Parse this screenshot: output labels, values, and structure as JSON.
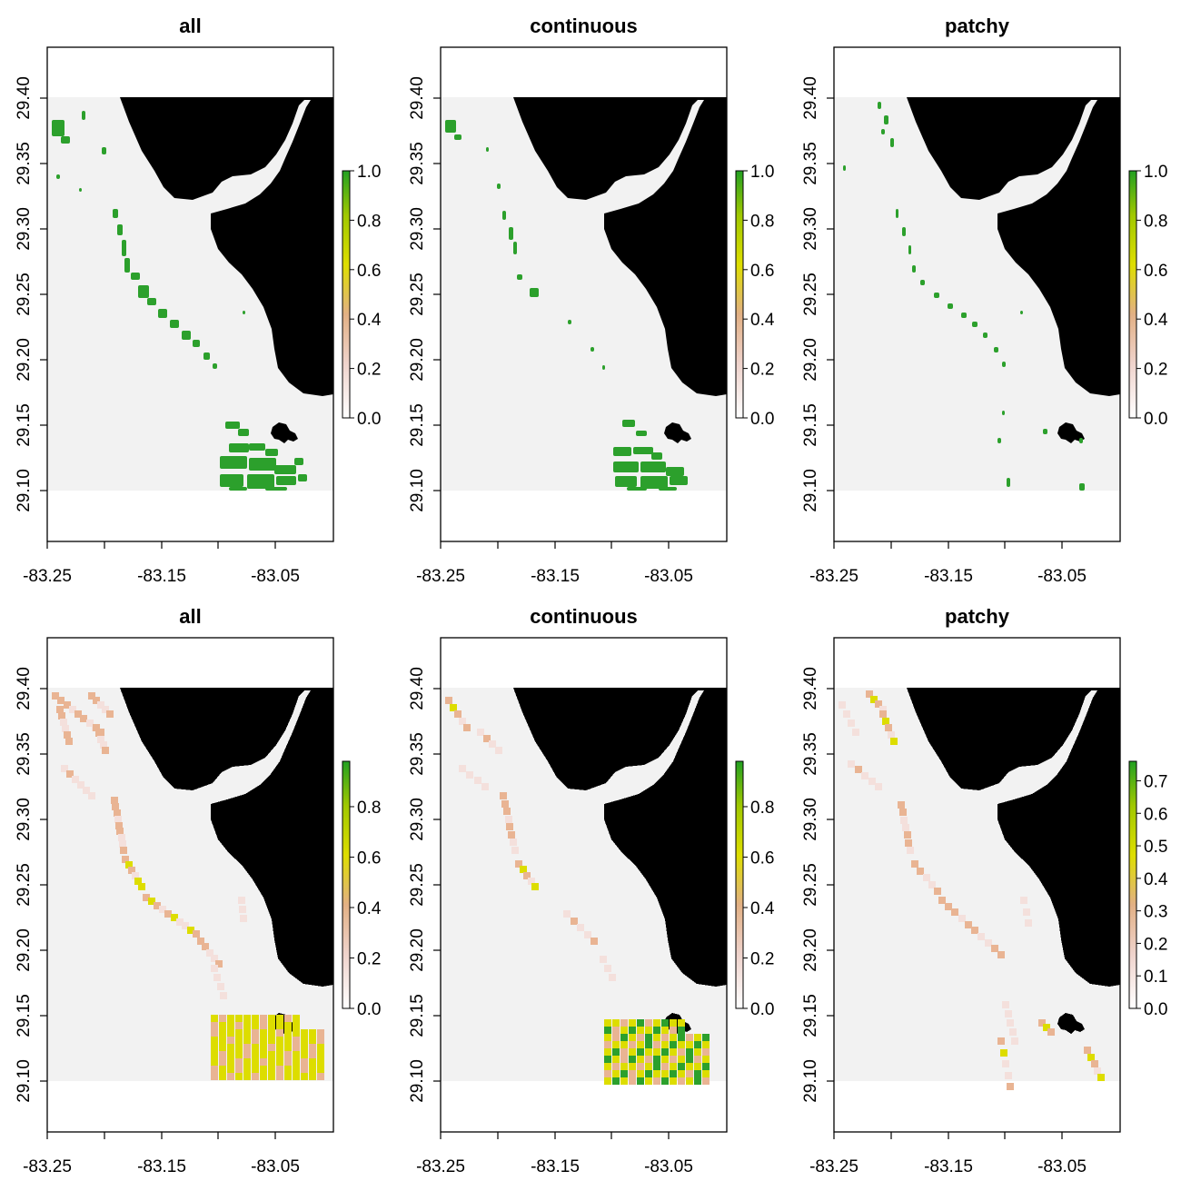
{
  "figure": {
    "panels": [
      {
        "title": "all",
        "layer": "binary",
        "x_ticks": [
          "-83.25",
          "-83.15",
          "-83.05"
        ],
        "y_ticks": [
          "29.10",
          "29.15",
          "29.20",
          "29.25",
          "29.30",
          "29.35",
          "29.40"
        ],
        "legend_ticks": [
          "0.0",
          "0.2",
          "0.4",
          "0.6",
          "0.8",
          "1.0"
        ],
        "legend_max": 1.0
      },
      {
        "title": "continuous",
        "layer": "binary",
        "x_ticks": [
          "-83.25",
          "-83.15",
          "-83.05"
        ],
        "y_ticks": [
          "29.10",
          "29.15",
          "29.20",
          "29.25",
          "29.30",
          "29.35",
          "29.40"
        ],
        "legend_ticks": [
          "0.0",
          "0.2",
          "0.4",
          "0.6",
          "0.8",
          "1.0"
        ],
        "legend_max": 1.0
      },
      {
        "title": "patchy",
        "layer": "binary",
        "x_ticks": [
          "-83.25",
          "-83.15",
          "-83.05"
        ],
        "y_ticks": [
          "29.10",
          "29.15",
          "29.20",
          "29.25",
          "29.30",
          "29.35",
          "29.40"
        ],
        "legend_ticks": [
          "0.0",
          "0.2",
          "0.4",
          "0.6",
          "0.8",
          "1.0"
        ],
        "legend_max": 1.0
      },
      {
        "title": "all",
        "layer": "density",
        "x_ticks": [
          "-83.25",
          "-83.15",
          "-83.05"
        ],
        "y_ticks": [
          "29.10",
          "29.15",
          "29.20",
          "29.25",
          "29.30",
          "29.35",
          "29.40"
        ],
        "legend_ticks": [
          "0.0",
          "0.2",
          "0.4",
          "0.6",
          "0.8"
        ],
        "legend_max": 0.98
      },
      {
        "title": "continuous",
        "layer": "density",
        "x_ticks": [
          "-83.25",
          "-83.15",
          "-83.05"
        ],
        "y_ticks": [
          "29.10",
          "29.15",
          "29.20",
          "29.25",
          "29.30",
          "29.35",
          "29.40"
        ],
        "legend_ticks": [
          "0.0",
          "0.2",
          "0.4",
          "0.6",
          "0.8"
        ],
        "legend_max": 0.98
      },
      {
        "title": "patchy",
        "layer": "density",
        "x_ticks": [
          "-83.25",
          "-83.15",
          "-83.05"
        ],
        "y_ticks": [
          "29.10",
          "29.15",
          "29.20",
          "29.25",
          "29.30",
          "29.35",
          "29.40"
        ],
        "legend_ticks": [
          "0.0",
          "0.1",
          "0.2",
          "0.3",
          "0.4",
          "0.5",
          "0.6",
          "0.7"
        ],
        "legend_max": 0.76
      }
    ],
    "colors": {
      "land": "#000000",
      "water": "#f2f2f2",
      "background": "#ffffff",
      "high": "#2ca02c",
      "mid": "#dddd00",
      "low": "#e9b493",
      "lowest": "#f4e0dc"
    }
  }
}
